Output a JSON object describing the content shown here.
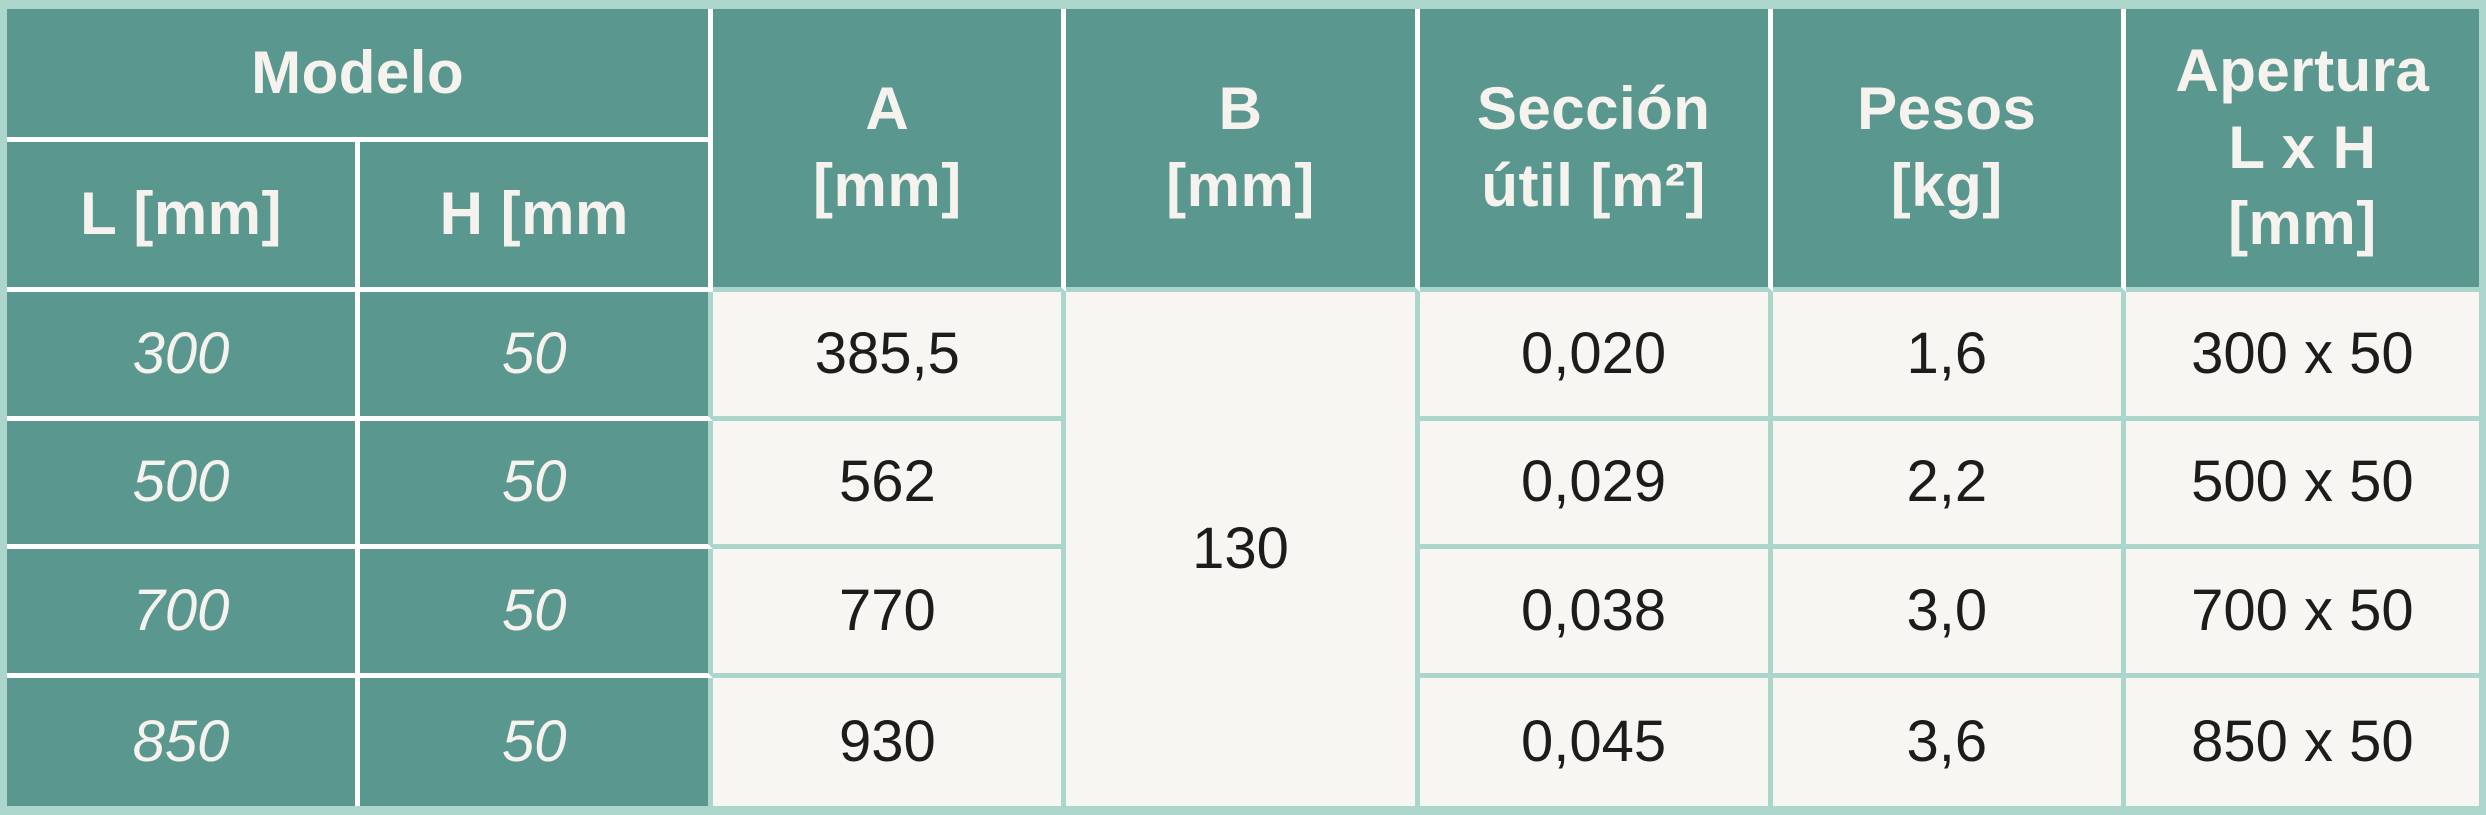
{
  "table": {
    "header": {
      "modelo": "Modelo",
      "l": "L [mm]",
      "h": "H [mm",
      "a": "A\n[mm]",
      "b": "B\n[mm]",
      "seccion": "Sección\nútil [m²]",
      "pesos": "Pesos\n[kg]",
      "apertura": "Apertura\nL x H\n[mm]"
    },
    "b_merged_value": "130",
    "rows": [
      {
        "l": "300",
        "h": "50",
        "a": "385,5",
        "seccion": "0,020",
        "pesos": "1,6",
        "apertura": "300 x 50"
      },
      {
        "l": "500",
        "h": "50",
        "a": "562",
        "seccion": "0,029",
        "pesos": "2,2",
        "apertura": "500 x 50"
      },
      {
        "l": "700",
        "h": "50",
        "a": "770",
        "seccion": "0,038",
        "pesos": "3,0",
        "apertura": "700 x 50"
      },
      {
        "l": "850",
        "h": "50",
        "a": "930",
        "seccion": "0,045",
        "pesos": "3,6",
        "apertura": "850 x 50"
      }
    ],
    "colors": {
      "teal": "#5A988F",
      "mint_frame": "#ACD5CB",
      "cell_background": "#F7F6F3",
      "header_text": "#F6F3EF",
      "body_text": "#1C1C1A",
      "white_separator": "#FDFEFD"
    }
  }
}
